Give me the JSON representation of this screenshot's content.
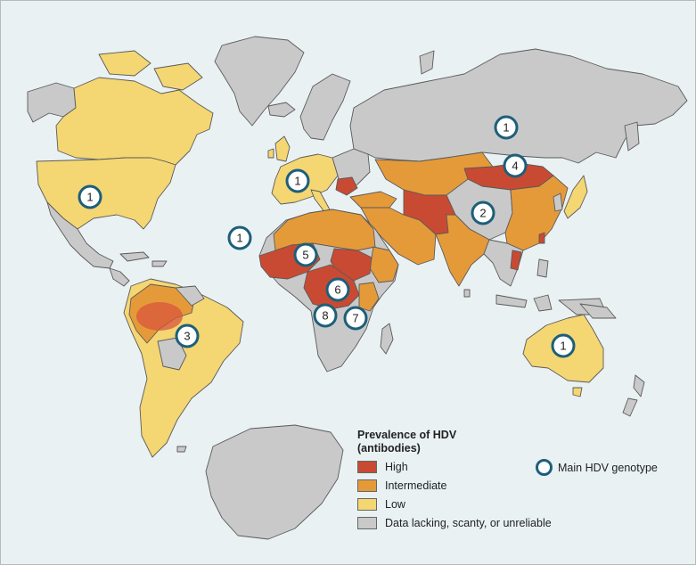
{
  "legend": {
    "title_line1": "Prevalence of HDV",
    "title_line2": "(antibodies)",
    "items": [
      {
        "label": "High",
        "color": "#c94a33"
      },
      {
        "label": "Intermediate",
        "color": "#e59a3a"
      },
      {
        "label": "Low",
        "color": "#f4d673"
      },
      {
        "label": "Data lacking, scanty, or unreliable",
        "color": "#c9c9c9"
      }
    ],
    "genotype_label": "Main HDV genotype"
  },
  "genotype_markers": [
    "1",
    "1",
    "1",
    "1",
    "1",
    "2",
    "3",
    "4",
    "5",
    "6",
    "7",
    "8"
  ],
  "colors": {
    "ocean": "#e9f1f3",
    "marker_ring": "#1d5f7a"
  }
}
